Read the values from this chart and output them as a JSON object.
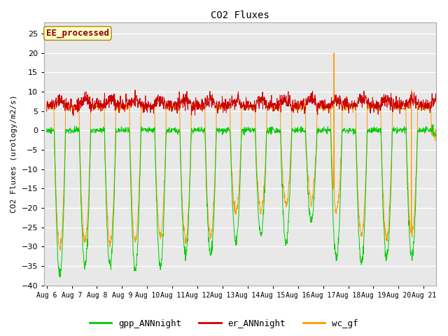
{
  "title": "CO2 Fluxes",
  "ylabel": "CO2 Fluxes (urology/m2/s)",
  "ylim": [
    -40,
    28
  ],
  "yticks": [
    -40,
    -35,
    -30,
    -25,
    -20,
    -15,
    -10,
    -5,
    0,
    5,
    10,
    15,
    20,
    25
  ],
  "x_tick_labels": [
    "Aug 6",
    "Aug 7",
    "Aug 8",
    "Aug 9",
    "Aug 10",
    "Aug 11",
    "Aug 12",
    "Aug 13",
    "Aug 14",
    "Aug 15",
    "Aug 16",
    "Aug 17",
    "Aug 18",
    "Aug 19",
    "Aug 20",
    "Aug 21"
  ],
  "x_tick_positions": [
    0,
    1,
    2,
    3,
    4,
    5,
    6,
    7,
    8,
    9,
    10,
    11,
    12,
    13,
    14,
    15
  ],
  "xlim_days": [
    -0.1,
    15.5
  ],
  "colors": {
    "gpp": "#00cc00",
    "er": "#cc0000",
    "wc": "#ff9900"
  },
  "legend_labels": [
    "gpp_ANNnight",
    "er_ANNnight",
    "wc_gf"
  ],
  "annotation_text": "EE_processed",
  "annotation_color": "#8b0000",
  "annotation_bg": "#ffffcc",
  "fig_bg": "#ffffff",
  "plot_bg": "#e8e8e8",
  "grid_color": "white",
  "linewidth": 0.7,
  "points_per_day": 96
}
